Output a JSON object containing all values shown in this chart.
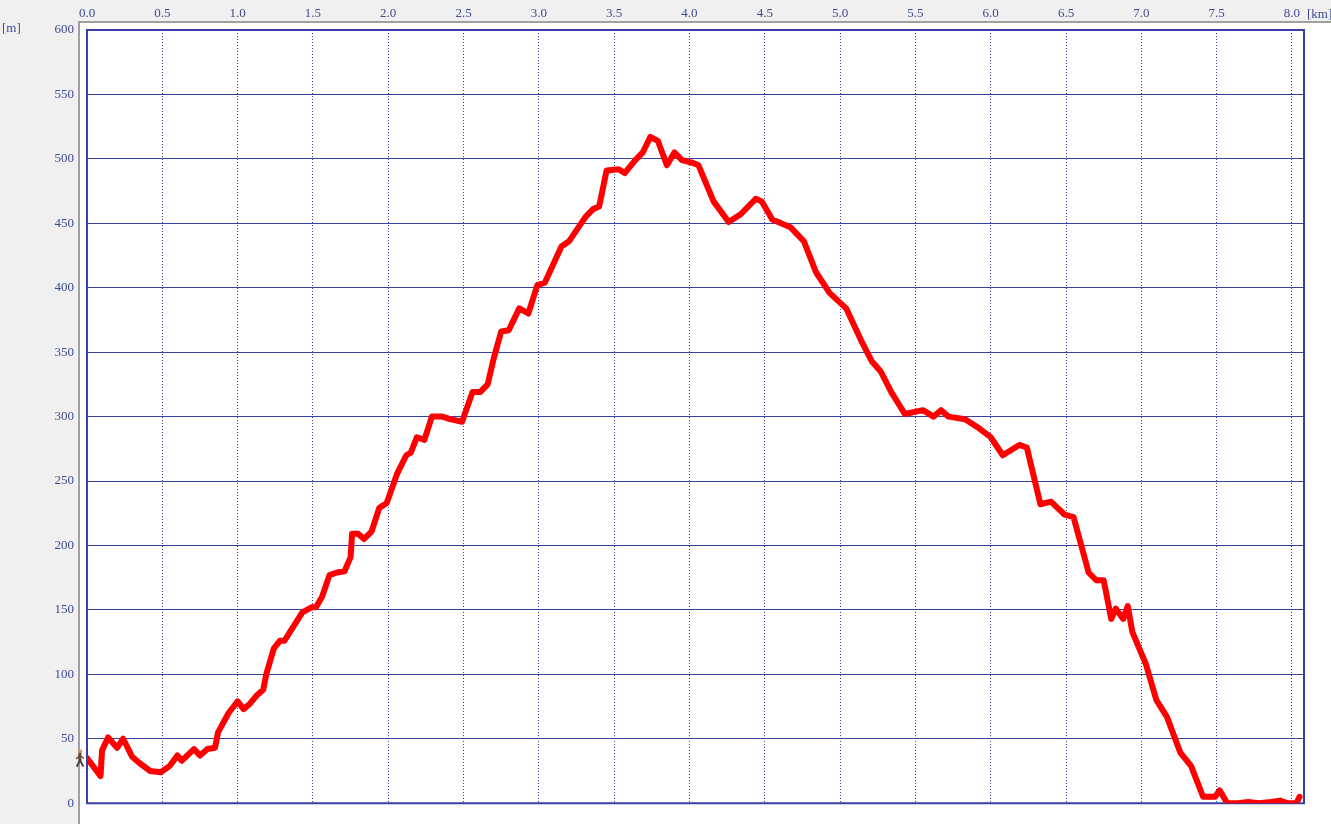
{
  "chart_data": {
    "type": "line",
    "xlabel": "[km]",
    "ylabel": "[m]",
    "color": "#ff0000",
    "x": [
      0.0,
      0.09,
      0.1,
      0.14,
      0.2,
      0.24,
      0.3,
      0.35,
      0.42,
      0.49,
      0.55,
      0.6,
      0.63,
      0.71,
      0.75,
      0.8,
      0.85,
      0.87,
      0.94,
      1.0,
      1.04,
      1.08,
      1.13,
      1.17,
      1.19,
      1.24,
      1.28,
      1.31,
      1.43,
      1.49,
      1.52,
      1.56,
      1.61,
      1.66,
      1.71,
      1.75,
      1.76,
      1.8,
      1.84,
      1.89,
      1.94,
      1.99,
      2.06,
      2.12,
      2.15,
      2.19,
      2.24,
      2.29,
      2.36,
      2.41,
      2.49,
      2.56,
      2.61,
      2.66,
      2.7,
      2.75,
      2.8,
      2.87,
      2.93,
      2.99,
      3.04,
      3.15,
      3.2,
      3.31,
      3.36,
      3.4,
      3.45,
      3.53,
      3.57,
      3.64,
      3.69,
      3.74,
      3.79,
      3.85,
      3.9,
      3.95,
      4.02,
      4.06,
      4.16,
      4.26,
      4.34,
      4.44,
      4.48,
      4.55,
      4.67,
      4.76,
      4.84,
      4.93,
      5.04,
      5.14,
      5.21,
      5.27,
      5.34,
      5.43,
      5.55,
      5.62,
      5.67,
      5.72,
      5.83,
      5.91,
      6.0,
      6.08,
      6.19,
      6.24,
      6.33,
      6.4,
      6.49,
      6.55,
      6.65,
      6.7,
      6.75,
      6.8,
      6.83,
      6.88,
      6.91,
      6.94,
      7.03,
      7.1,
      7.17,
      7.26,
      7.33,
      7.41,
      7.49,
      7.52,
      7.57,
      7.64,
      7.71,
      7.78,
      7.86,
      7.92,
      7.97,
      8.03,
      8.05
    ],
    "values": [
      35,
      21,
      41,
      51,
      43,
      50,
      36,
      31,
      25,
      24,
      29,
      37,
      33,
      42,
      37,
      42,
      43,
      55,
      70,
      79,
      73,
      77,
      84,
      88,
      100,
      120,
      126,
      126,
      148,
      152,
      152,
      160,
      177,
      179,
      180,
      191,
      209,
      209,
      205,
      211,
      229,
      233,
      256,
      270,
      272,
      284,
      282,
      300,
      300,
      298,
      296,
      319,
      319,
      325,
      345,
      366,
      367,
      384,
      380,
      402,
      404,
      432,
      436,
      455,
      461,
      463,
      491,
      492,
      489,
      499,
      505,
      517,
      514,
      495,
      505,
      499,
      497,
      495,
      467,
      451,
      457,
      469,
      467,
      453,
      447,
      436,
      412,
      396,
      384,
      359,
      343,
      335,
      319,
      302,
      305,
      300,
      305,
      300,
      298,
      292,
      284,
      270,
      278,
      276,
      232,
      234,
      224,
      222,
      179,
      173,
      173,
      143,
      151,
      143,
      153,
      133,
      108,
      80,
      67,
      39,
      29,
      5,
      5,
      10,
      0,
      0,
      1,
      0,
      1,
      2,
      0,
      0,
      5
    ],
    "xlim": [
      0,
      8.08
    ],
    "xticks": [
      {
        "value": 0,
        "label": "0.0"
      },
      0.5,
      {
        "value": 1,
        "label": "1.0"
      },
      1.5,
      {
        "value": 2,
        "label": "2.0"
      },
      2.5,
      {
        "value": 3,
        "label": "3.0"
      },
      3.5,
      {
        "value": 4,
        "label": "4.0"
      },
      4.5,
      {
        "value": 5,
        "label": "5.0"
      },
      5.5,
      {
        "value": 6,
        "label": "6.0"
      },
      6.5,
      {
        "value": 7,
        "label": "7.0"
      },
      7.5,
      {
        "value": 8,
        "label": "8.0"
      }
    ],
    "ylim": [
      0,
      600
    ],
    "yticks": [
      0,
      50,
      100,
      150,
      200,
      250,
      300,
      350,
      400,
      450,
      500,
      550,
      600
    ],
    "grid": true
  }
}
